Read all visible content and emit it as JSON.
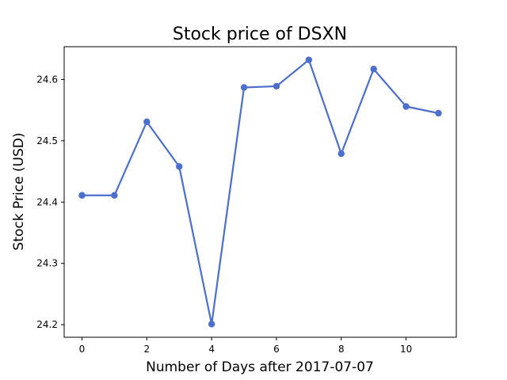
{
  "chart_data": {
    "type": "line",
    "title": "Stock price of DSXN",
    "xlabel": "Number of Days after 2017-07-07",
    "ylabel": "Stock Price (USD)",
    "x": [
      0,
      1,
      2,
      3,
      4,
      5,
      6,
      7,
      8,
      9,
      10,
      11
    ],
    "series": [
      {
        "values": [
          24.411,
          24.411,
          24.531,
          24.458,
          24.201,
          24.587,
          24.589,
          24.632,
          24.479,
          24.617,
          24.556,
          24.545
        ],
        "color": "#4c6fcc"
      }
    ],
    "xticks": [
      0,
      2,
      4,
      6,
      8,
      10
    ],
    "yticks": [
      24.2,
      24.3,
      24.4,
      24.5,
      24.6
    ],
    "xlim": [
      -0.55,
      11.55
    ],
    "ylim": [
      24.1795,
      24.6535
    ],
    "grid": false,
    "legend": false
  }
}
